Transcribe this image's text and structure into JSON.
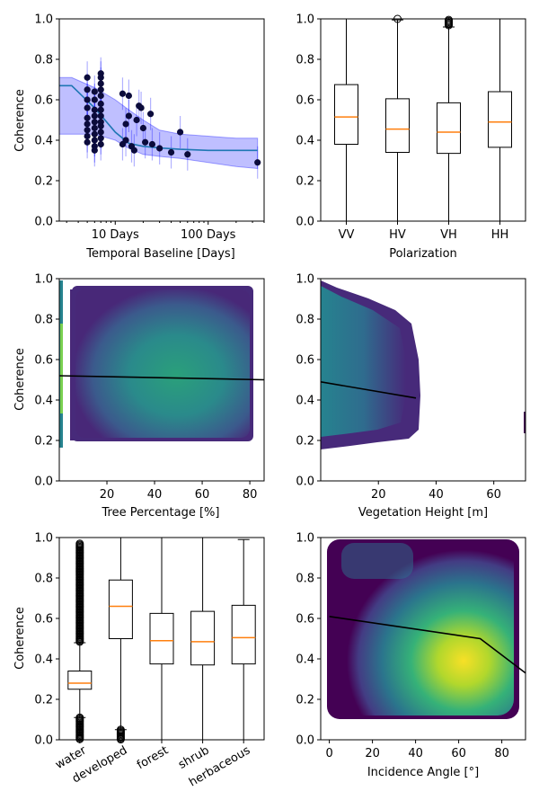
{
  "figure": {
    "panel_a": {
      "ylabel": "Coherence",
      "xlabel": "Temporal Baseline [Days]"
    },
    "panel_b": {
      "xlabel": "Polarization"
    },
    "panel_c": {
      "ylabel": "Coherence",
      "xlabel": "Tree Percentage [%]"
    },
    "panel_d": {
      "xlabel": "Vegetation Height [m]"
    },
    "panel_e": {
      "ylabel": "Coherence"
    },
    "panel_f": {
      "xlabel": "Incidence Angle [°]"
    }
  },
  "colors": {
    "fit_line": "#1f77b4",
    "band_fill": "#0000ff",
    "points": "#0b0b3b",
    "median": "#ff7f0e",
    "heat_low": "#440154",
    "heat_mid": "#21918c",
    "heat_high": "#fde725"
  },
  "chart_data": [
    {
      "id": "temporal",
      "type": "scatter",
      "xscale": "log",
      "xlim": [
        2.5,
        400
      ],
      "ylim": [
        0,
        1
      ],
      "x_ticks": [
        {
          "v": 10,
          "label": "10 Days"
        },
        {
          "v": 100,
          "label": "100 Days"
        }
      ],
      "y_ticks": [
        "0.0",
        "0.2",
        "0.4",
        "0.6",
        "0.8",
        "1.0"
      ],
      "fit_line": {
        "x": [
          2.5,
          3.4,
          6,
          10,
          14,
          20,
          30,
          50,
          100,
          200,
          340
        ],
        "y": [
          0.67,
          0.67,
          0.56,
          0.44,
          0.385,
          0.37,
          0.362,
          0.355,
          0.35,
          0.35,
          0.35
        ]
      },
      "band": {
        "x": [
          2.5,
          3.4,
          6,
          10,
          14,
          20,
          30,
          50,
          100,
          200,
          340
        ],
        "upper": [
          0.71,
          0.71,
          0.66,
          0.6,
          0.55,
          0.5,
          0.45,
          0.43,
          0.42,
          0.41,
          0.41
        ],
        "lower": [
          0.43,
          0.43,
          0.43,
          0.4,
          0.36,
          0.33,
          0.32,
          0.31,
          0.29,
          0.27,
          0.26
        ]
      },
      "points": {
        "x": [
          5,
          5,
          5,
          5,
          5,
          5,
          5,
          5,
          5,
          6,
          6,
          6,
          6,
          6,
          6,
          6,
          6,
          6,
          6,
          7,
          7,
          7,
          7,
          7,
          7,
          7,
          7,
          7,
          7,
          7,
          7,
          7,
          12,
          12,
          13,
          13,
          14,
          14,
          15,
          16,
          17,
          18,
          19,
          20,
          21,
          24,
          25,
          30,
          40,
          50,
          60,
          340
        ],
        "y": [
          0.71,
          0.65,
          0.6,
          0.56,
          0.51,
          0.48,
          0.45,
          0.42,
          0.39,
          0.64,
          0.6,
          0.55,
          0.52,
          0.49,
          0.46,
          0.43,
          0.4,
          0.37,
          0.35,
          0.73,
          0.71,
          0.68,
          0.65,
          0.62,
          0.58,
          0.55,
          0.52,
          0.49,
          0.47,
          0.44,
          0.41,
          0.38,
          0.63,
          0.38,
          0.48,
          0.4,
          0.62,
          0.52,
          0.37,
          0.35,
          0.5,
          0.57,
          0.56,
          0.46,
          0.39,
          0.53,
          0.38,
          0.36,
          0.34,
          0.44,
          0.33,
          0.29
        ]
      }
    },
    {
      "id": "polarization",
      "type": "box",
      "categories": [
        "VV",
        "HV",
        "VH",
        "HH"
      ],
      "ylim": [
        0,
        1
      ],
      "y_ticks": [
        "0.0",
        "0.2",
        "0.4",
        "0.6",
        "0.8",
        "1.0"
      ],
      "boxes": [
        {
          "whislo": 0.0,
          "q1": 0.38,
          "med": 0.515,
          "q3": 0.675,
          "whishi": 1.0,
          "fliers_high": []
        },
        {
          "whislo": 0.0,
          "q1": 0.34,
          "med": 0.455,
          "q3": 0.605,
          "whishi": 0.995,
          "fliers_high": [
            1.0
          ]
        },
        {
          "whislo": 0.0,
          "q1": 0.335,
          "med": 0.44,
          "q3": 0.585,
          "whishi": 0.96,
          "fliers_high": [
            0.965,
            0.975,
            0.985,
            0.995
          ]
        },
        {
          "whislo": 0.0,
          "q1": 0.365,
          "med": 0.49,
          "q3": 0.64,
          "whishi": 1.0,
          "fliers_high": []
        }
      ]
    },
    {
      "id": "tree",
      "type": "heatmap",
      "xlim": [
        0,
        86
      ],
      "ylim": [
        0,
        1
      ],
      "x_ticks": [
        20,
        40,
        60,
        80
      ],
      "y_ticks": [
        "0.0",
        "0.2",
        "0.4",
        "0.6",
        "0.8",
        "1.0"
      ],
      "fit_line": {
        "x": [
          0,
          86
        ],
        "y": [
          0.52,
          0.5
        ]
      }
    },
    {
      "id": "vegheight",
      "type": "heatmap",
      "xlim": [
        0,
        71
      ],
      "ylim": [
        0,
        1
      ],
      "x_ticks": [
        20,
        40,
        60
      ],
      "fit_line": {
        "x": [
          0,
          33
        ],
        "y": [
          0.49,
          0.41
        ]
      }
    },
    {
      "id": "landcover",
      "type": "box",
      "categories": [
        "water",
        "developed",
        "forest",
        "shrub",
        "herbaceous"
      ],
      "ylim": [
        0,
        1
      ],
      "y_ticks": [
        "0.0",
        "0.2",
        "0.4",
        "0.6",
        "0.8",
        "1.0"
      ],
      "boxes": [
        {
          "whislo": 0.11,
          "q1": 0.25,
          "med": 0.28,
          "q3": 0.34,
          "whishi": 0.48,
          "fliers_low": [
            0.0,
            0.11
          ],
          "fliers_high": [
            0.48,
            0.97
          ]
        },
        {
          "whislo": 0.05,
          "q1": 0.5,
          "med": 0.66,
          "q3": 0.79,
          "whishi": 1.0,
          "fliers_low": [
            0.0,
            0.05
          ],
          "fliers_high": []
        },
        {
          "whislo": 0.0,
          "q1": 0.375,
          "med": 0.49,
          "q3": 0.625,
          "whishi": 1.0,
          "fliers_low": [],
          "fliers_high": []
        },
        {
          "whislo": 0.0,
          "q1": 0.37,
          "med": 0.485,
          "q3": 0.635,
          "whishi": 1.0,
          "fliers_low": [],
          "fliers_high": []
        },
        {
          "whislo": 0.0,
          "q1": 0.375,
          "med": 0.505,
          "q3": 0.665,
          "whishi": 0.99,
          "fliers_low": [],
          "fliers_high": []
        }
      ]
    },
    {
      "id": "incidence",
      "type": "heatmap",
      "xlim": [
        -4,
        91
      ],
      "ylim": [
        0,
        1
      ],
      "x_ticks": [
        0,
        20,
        40,
        60,
        80
      ],
      "y_ticks": [
        "0.0",
        "0.2",
        "0.4",
        "0.6",
        "0.8",
        "1.0"
      ],
      "fit_line": {
        "x": [
          0,
          70,
          91
        ],
        "y": [
          0.61,
          0.5,
          0.33
        ]
      }
    }
  ]
}
